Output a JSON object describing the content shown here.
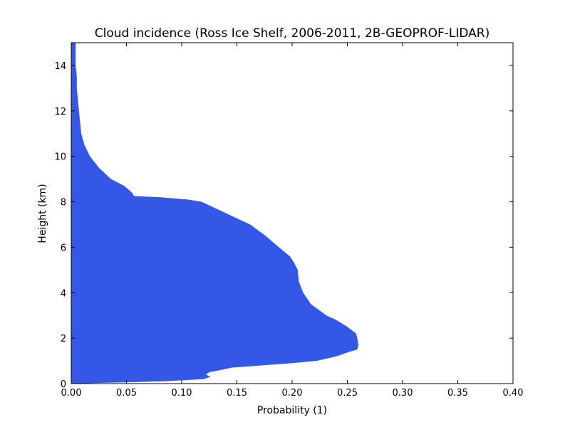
{
  "chart_data": {
    "type": "area",
    "title": "Cloud incidence (Ross Ice Shelf, 2006-2011, 2B-GEOPROF-LIDAR)",
    "xlabel": "Probability (1)",
    "ylabel": "Height (km)",
    "xlim": [
      0.0,
      0.4
    ],
    "ylim": [
      0,
      15
    ],
    "grid": false,
    "x_tick_labels": [
      "0.00",
      "0.05",
      "0.10",
      "0.15",
      "0.20",
      "0.25",
      "0.30",
      "0.35",
      "0.40"
    ],
    "y_tick_labels": [
      "0",
      "2",
      "4",
      "6",
      "8",
      "10",
      "12",
      "14"
    ],
    "fill_color": "#3557e6",
    "series": [
      {
        "orientation": "horizontal",
        "height_km": [
          0.0,
          0.1,
          0.2,
          0.3,
          0.4,
          0.5,
          0.6,
          0.7,
          0.9,
          1.0,
          1.2,
          1.4,
          1.5,
          1.7,
          2.0,
          2.2,
          2.5,
          2.8,
          3.0,
          3.5,
          4.0,
          4.5,
          5.0,
          5.3,
          5.6,
          6.0,
          6.5,
          7.0,
          7.5,
          8.0,
          8.1,
          8.2,
          8.25,
          8.4,
          8.7,
          9.0,
          9.5,
          10.0,
          10.5,
          11.0,
          11.5,
          12.0,
          12.5,
          13.0,
          13.5,
          14.0,
          14.5,
          15.0
        ],
        "probability": [
          0.002,
          0.085,
          0.12,
          0.126,
          0.122,
          0.125,
          0.136,
          0.145,
          0.2,
          0.222,
          0.24,
          0.252,
          0.259,
          0.26,
          0.259,
          0.258,
          0.25,
          0.24,
          0.231,
          0.217,
          0.21,
          0.206,
          0.205,
          0.202,
          0.198,
          0.188,
          0.176,
          0.162,
          0.14,
          0.118,
          0.105,
          0.08,
          0.057,
          0.055,
          0.048,
          0.036,
          0.025,
          0.017,
          0.012,
          0.009,
          0.008,
          0.007,
          0.006,
          0.005,
          0.005,
          0.004,
          0.004,
          0.004
        ]
      }
    ]
  }
}
